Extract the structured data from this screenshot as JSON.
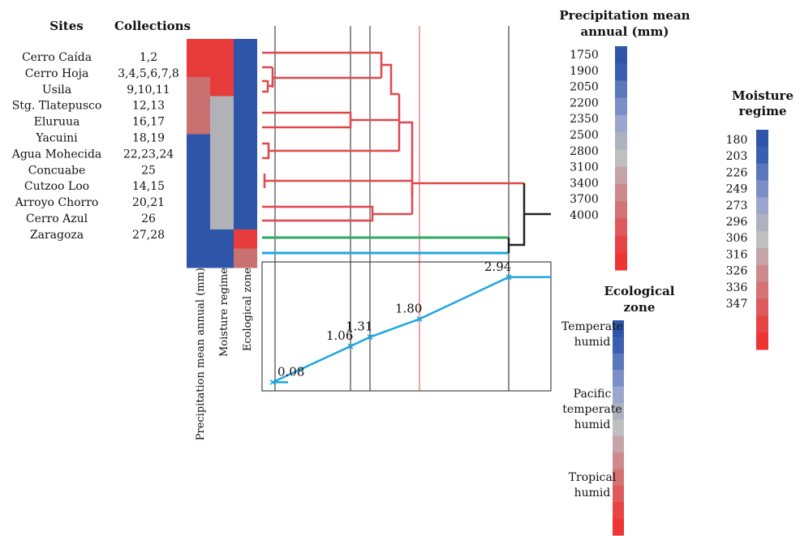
{
  "headers": {
    "sites": "Sites",
    "collections": "Collections"
  },
  "rows": [
    {
      "site": "Cerro Caída",
      "collections": "1,2"
    },
    {
      "site": "Cerro Hoja",
      "collections": "3,4,5,6,7,8"
    },
    {
      "site": "Usila",
      "collections": "9,10,11"
    },
    {
      "site": "Stg. Tlatepusco",
      "collections": "12,13"
    },
    {
      "site": "Eluruua",
      "collections": "16,17"
    },
    {
      "site": "Yacuini",
      "collections": "18,19"
    },
    {
      "site": "Agua Mohecida",
      "collections": "22,23,24"
    },
    {
      "site": "Concuabe",
      "collections": "25"
    },
    {
      "site": "Cutzoo Loo",
      "collections": "14,15"
    },
    {
      "site": "Arroyo Chorro",
      "collections": "20,21"
    },
    {
      "site": "Cerro Azul",
      "collections": "26"
    },
    {
      "site": "Zaragoza",
      "collections": "27,28"
    }
  ],
  "heatmap_columns": [
    "Precipitation mean annual (mm)",
    "Moisture regime",
    "Ecological zone"
  ],
  "heatmap_cells": [
    [
      "#e83b3b",
      "#e83b3b",
      "#2f55a8"
    ],
    [
      "#e83b3b",
      "#e83b3b",
      "#2f55a8"
    ],
    [
      "#c97070",
      "#e83b3b",
      "#2f55a8"
    ],
    [
      "#c97070",
      "#b0b2b8",
      "#2f55a8"
    ],
    [
      "#c97070",
      "#b0b2b8",
      "#2f55a8"
    ],
    [
      "#2f55a8",
      "#b0b2b8",
      "#2f55a8"
    ],
    [
      "#2f55a8",
      "#b0b2b8",
      "#2f55a8"
    ],
    [
      "#2f55a8",
      "#b0b2b8",
      "#2f55a8"
    ],
    [
      "#2f55a8",
      "#b0b2b8",
      "#2f55a8"
    ],
    [
      "#2f55a8",
      "#b0b2b8",
      "#2f55a8"
    ],
    [
      "#2f55a8",
      "#2f55a8",
      "#e83b3b"
    ],
    [
      "#2f55a8",
      "#2f55a8",
      "#c97070"
    ]
  ],
  "plot_points": [
    {
      "x": 1,
      "value": 0.08,
      "label": "0.08"
    },
    {
      "x": 2,
      "value": 1.06,
      "label": "1.06"
    },
    {
      "x": 3,
      "value": 1.31,
      "label": "1.31"
    },
    {
      "x": 4,
      "value": 1.8,
      "label": "1.80"
    },
    {
      "x": 5,
      "value": 2.94,
      "label": "2.94"
    }
  ],
  "legends": {
    "precipitation": {
      "title_line1": "Precipitation mean",
      "title_line2": "annual (mm)",
      "labels": [
        "1750",
        "1900",
        "2050",
        "2200",
        "2350",
        "2500",
        "2800",
        "3100",
        "3400",
        "3700",
        "4000"
      ]
    },
    "moisture": {
      "title_line1": "Moisture",
      "title_line2": "regime",
      "labels": [
        "180",
        "203",
        "226",
        "249",
        "273",
        "296",
        "306",
        "316",
        "326",
        "336",
        "347"
      ]
    },
    "ecological": {
      "title_line1": "Ecological",
      "title_line2": "zone",
      "labels": [
        [
          "Temperate",
          "humid"
        ],
        [
          "Pacific",
          "temperate",
          "humid"
        ],
        [
          "Tropical",
          "humid"
        ]
      ]
    }
  },
  "colors": {
    "dendro_red": "#e0474c",
    "dendro_black": "#222222",
    "green": "#2eaa5e",
    "cyan": "#1ea7e0",
    "scale": [
      "#2f55a8",
      "#3a5fb0",
      "#5b77bb",
      "#7b8fc6",
      "#9aa6cd",
      "#aeb2be",
      "#bfbfbf",
      "#c4a4a6",
      "#cc8a8c",
      "#d47274",
      "#de5a5c",
      "#e84446",
      "#ef3434"
    ]
  }
}
